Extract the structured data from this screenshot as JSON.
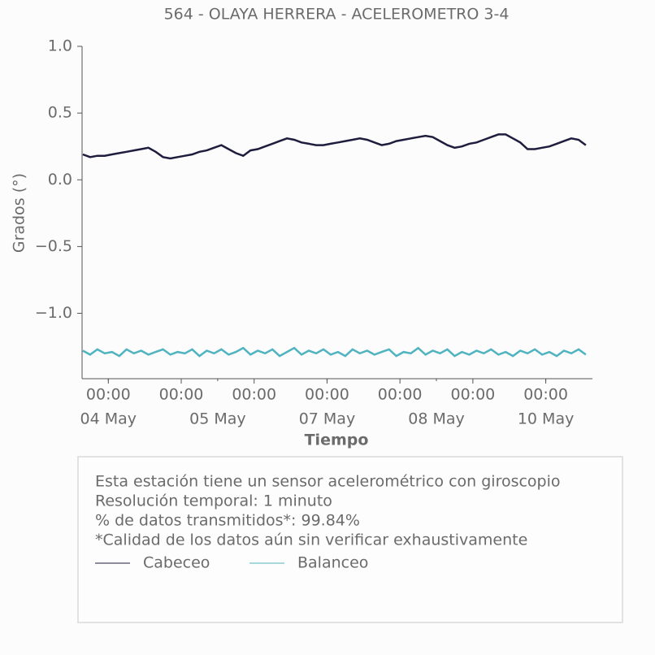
{
  "chart_data": {
    "type": "line",
    "title": "564 - OLAYA HERRERA - ACELEROMETRO 3-4",
    "x_label": "Tiempo",
    "y_label": "Grados (°)",
    "xlim": [
      -0.36,
      6.64
    ],
    "xticks": [
      {
        "value": 0,
        "label": "00:00"
      },
      {
        "value": 1,
        "label": "00:00"
      },
      {
        "value": 2,
        "label": "00:00"
      },
      {
        "value": 3,
        "label": "00:00"
      },
      {
        "value": 4,
        "label": "00:00"
      },
      {
        "value": 5,
        "label": "00:00"
      },
      {
        "value": 6,
        "label": "00:00"
      }
    ],
    "xticks_dates": [
      {
        "value": 0,
        "label": "04 May"
      },
      {
        "value": 1.5,
        "label": "05 May"
      },
      {
        "value": 3,
        "label": "07 May"
      },
      {
        "value": 4.5,
        "label": "08 May"
      },
      {
        "value": 6,
        "label": "10 May"
      }
    ],
    "ylim": [
      -1.49,
      1.0
    ],
    "yticks": [
      {
        "value": 1.0,
        "label": "1.0"
      },
      {
        "value": 0.5,
        "label": "0.5"
      },
      {
        "value": 0,
        "label": "0.0"
      },
      {
        "value": -0.5,
        "label": "−0.5"
      },
      {
        "value": -1.0,
        "label": "−1.0"
      }
    ],
    "x": [
      -0.35,
      -0.25,
      -0.15,
      -0.05,
      0.05,
      0.15,
      0.25,
      0.35,
      0.45,
      0.55,
      0.65,
      0.75,
      0.85,
      0.95,
      1.05,
      1.15,
      1.25,
      1.35,
      1.45,
      1.55,
      1.65,
      1.75,
      1.85,
      1.95,
      2.05,
      2.15,
      2.25,
      2.35,
      2.45,
      2.55,
      2.65,
      2.75,
      2.85,
      2.95,
      3.05,
      3.15,
      3.25,
      3.35,
      3.45,
      3.55,
      3.65,
      3.75,
      3.85,
      3.95,
      4.05,
      4.15,
      4.25,
      4.35,
      4.45,
      4.55,
      4.65,
      4.75,
      4.85,
      4.95,
      5.05,
      5.15,
      5.25,
      5.35,
      5.45,
      5.55,
      5.65,
      5.75,
      5.85,
      5.95,
      6.05,
      6.15,
      6.25,
      6.35,
      6.45,
      6.55
    ],
    "series": [
      {
        "name": "Cabeceo",
        "color": "#1f1d3d",
        "values": [
          0.19,
          0.17,
          0.18,
          0.18,
          0.19,
          0.2,
          0.21,
          0.22,
          0.23,
          0.24,
          0.21,
          0.17,
          0.16,
          0.17,
          0.18,
          0.19,
          0.21,
          0.22,
          0.24,
          0.26,
          0.23,
          0.2,
          0.18,
          0.22,
          0.23,
          0.25,
          0.27,
          0.29,
          0.31,
          0.3,
          0.28,
          0.27,
          0.26,
          0.26,
          0.27,
          0.28,
          0.29,
          0.3,
          0.31,
          0.3,
          0.28,
          0.26,
          0.27,
          0.29,
          0.3,
          0.31,
          0.32,
          0.33,
          0.32,
          0.29,
          0.26,
          0.24,
          0.25,
          0.27,
          0.28,
          0.3,
          0.32,
          0.34,
          0.34,
          0.31,
          0.28,
          0.23,
          0.23,
          0.24,
          0.25,
          0.27,
          0.29,
          0.31,
          0.3,
          0.26
        ]
      },
      {
        "name": "Balanceo",
        "color": "#4fb3c0",
        "values": [
          -1.28,
          -1.31,
          -1.27,
          -1.3,
          -1.29,
          -1.32,
          -1.27,
          -1.3,
          -1.28,
          -1.31,
          -1.29,
          -1.27,
          -1.31,
          -1.29,
          -1.3,
          -1.27,
          -1.32,
          -1.28,
          -1.3,
          -1.27,
          -1.31,
          -1.29,
          -1.26,
          -1.31,
          -1.28,
          -1.3,
          -1.27,
          -1.32,
          -1.29,
          -1.26,
          -1.31,
          -1.28,
          -1.3,
          -1.27,
          -1.31,
          -1.29,
          -1.32,
          -1.27,
          -1.3,
          -1.28,
          -1.31,
          -1.29,
          -1.27,
          -1.32,
          -1.29,
          -1.3,
          -1.26,
          -1.31,
          -1.28,
          -1.3,
          -1.27,
          -1.32,
          -1.29,
          -1.31,
          -1.28,
          -1.3,
          -1.27,
          -1.31,
          -1.29,
          -1.32,
          -1.28,
          -1.3,
          -1.27,
          -1.31,
          -1.29,
          -1.32,
          -1.28,
          -1.3,
          -1.27,
          -1.31
        ]
      }
    ],
    "notes": [
      "Esta estación tiene un sensor acelerométrico con giroscopio",
      "Resolución temporal: 1 minuto",
      "% de datos transmitidos*: 99.84%",
      "*Calidad de los datos aún sin verificar exhaustivamente"
    ]
  }
}
